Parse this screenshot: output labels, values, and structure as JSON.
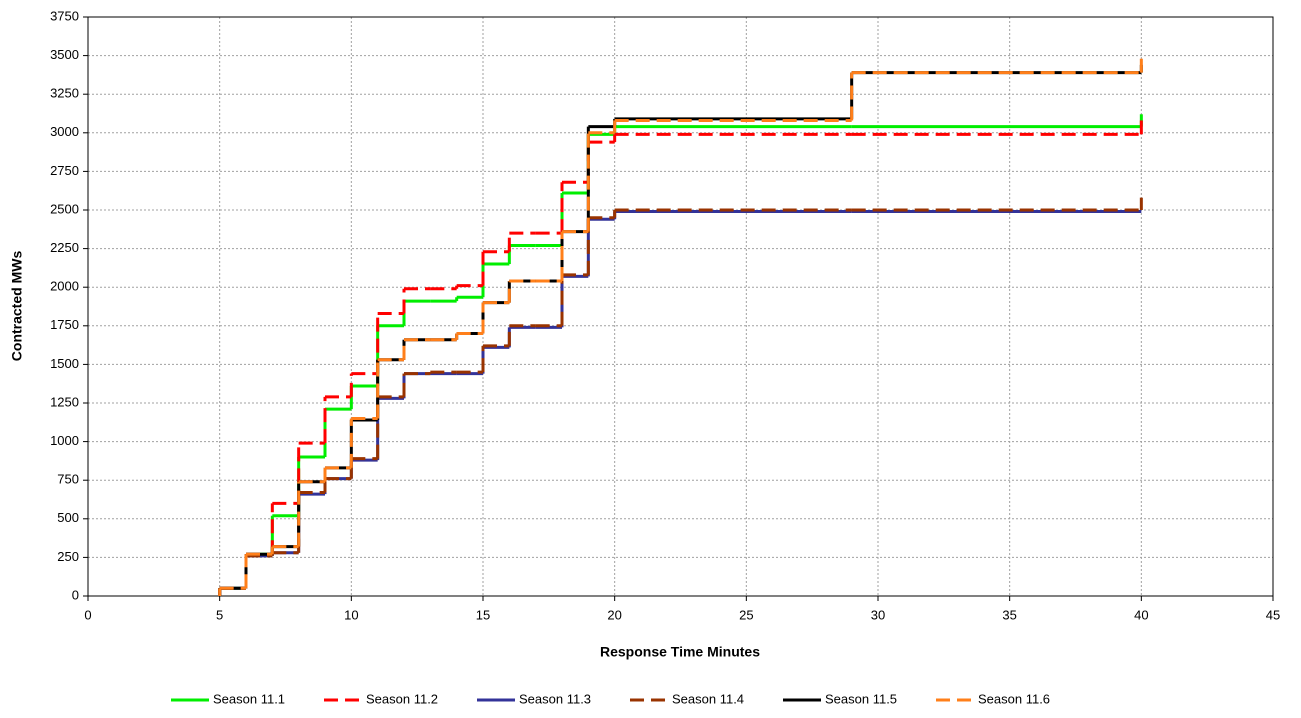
{
  "chart_data": {
    "type": "step",
    "xlabel": "Response Time Minutes",
    "ylabel": "Contracted MWs",
    "x": [
      5,
      6,
      7,
      8,
      9,
      10,
      11,
      12,
      13,
      14,
      15,
      16,
      17,
      18,
      19,
      20,
      29,
      40
    ],
    "series": [
      {
        "name": "Season 11.1",
        "color": "#00ee00",
        "dash": false,
        "values": [
          50,
          270,
          520,
          900,
          1210,
          1360,
          1750,
          1910,
          1910,
          1935,
          2150,
          2270,
          2270,
          2610,
          2990,
          3040,
          3040,
          3120
        ]
      },
      {
        "name": "Season 11.2",
        "color": "#ff0000",
        "dash": true,
        "values": [
          50,
          270,
          600,
          990,
          1290,
          1440,
          1830,
          1990,
          1990,
          2010,
          2230,
          2350,
          2350,
          2680,
          2940,
          2990,
          2990,
          3080
        ]
      },
      {
        "name": "Season 11.3",
        "color": "#333399",
        "dash": false,
        "values": [
          50,
          260,
          280,
          660,
          760,
          880,
          1280,
          1440,
          1440,
          1440,
          1610,
          1740,
          1740,
          2070,
          2440,
          2490,
          2490,
          2490
        ]
      },
      {
        "name": "Season 11.4",
        "color": "#993300",
        "dash": true,
        "values": [
          50,
          260,
          280,
          670,
          760,
          890,
          1290,
          1440,
          1450,
          1450,
          1620,
          1750,
          1750,
          2080,
          2450,
          2500,
          2500,
          2580
        ]
      },
      {
        "name": "Season 11.5",
        "color": "#000000",
        "dash": false,
        "values": [
          50,
          270,
          320,
          740,
          830,
          1140,
          1530,
          1660,
          1660,
          1700,
          1900,
          2040,
          2040,
          2360,
          3040,
          3090,
          3390,
          3440
        ]
      },
      {
        "name": "Season 11.6",
        "color": "#ff7f1a",
        "dash": true,
        "values": [
          50,
          270,
          320,
          740,
          830,
          1150,
          1530,
          1660,
          1660,
          1700,
          1900,
          2040,
          2040,
          2360,
          3000,
          3080,
          3390,
          3480
        ]
      }
    ],
    "xlim": [
      0,
      45
    ],
    "xticks": [
      0,
      5,
      10,
      15,
      20,
      25,
      30,
      35,
      40,
      45
    ],
    "ylim": [
      0,
      3750
    ],
    "yticks": [
      0,
      250,
      500,
      750,
      1000,
      1250,
      1500,
      1750,
      2000,
      2250,
      2500,
      2750,
      3000,
      3250,
      3500,
      3750
    ],
    "grid": true,
    "legend": "bottom"
  }
}
